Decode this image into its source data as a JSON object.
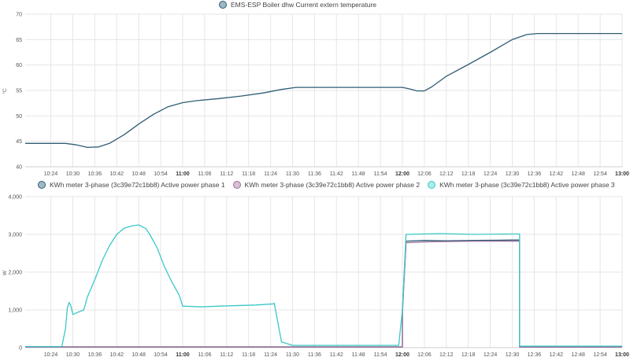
{
  "chart_data": [
    {
      "type": "line",
      "title": "",
      "ylabel": "°C",
      "ylim": [
        40,
        70
      ],
      "yticks": [
        "40",
        "45",
        "50",
        "55",
        "60",
        "65",
        "70"
      ],
      "xlim": [
        "10:17",
        "13:00"
      ],
      "x_tick_labels": [
        "10:24",
        "10:30",
        "10:36",
        "10:42",
        "10:48",
        "10:54",
        "11:00",
        "11:06",
        "11:12",
        "11:18",
        "11:24",
        "11:30",
        "11:36",
        "11:42",
        "11:48",
        "11:54",
        "12:00",
        "12:06",
        "12:12",
        "12:18",
        "12:24",
        "12:30",
        "12:36",
        "12:42",
        "12:48",
        "12:54",
        "13:00"
      ],
      "bold_ticks": [
        "11:00",
        "12:00",
        "13:00"
      ],
      "grid": true,
      "legend": "top-center",
      "series": [
        {
          "name": "EMS-ESP Boiler dhw Current extern temperature",
          "color": "#2f5d75",
          "x": [
            "10:17",
            "10:24",
            "10:28",
            "10:31",
            "10:34",
            "10:37",
            "10:40",
            "10:44",
            "10:48",
            "10:52",
            "10:56",
            "11:00",
            "11:04",
            "11:10",
            "11:16",
            "11:22",
            "11:27",
            "11:31",
            "11:40",
            "11:50",
            "12:00",
            "12:02",
            "12:04",
            "12:06",
            "12:08",
            "12:12",
            "12:18",
            "12:24",
            "12:30",
            "12:34",
            "12:37",
            "12:45",
            "13:00"
          ],
          "values": [
            44.6,
            44.6,
            44.6,
            44.3,
            43.8,
            43.9,
            44.6,
            46.3,
            48.4,
            50.3,
            51.8,
            52.6,
            53.0,
            53.4,
            53.9,
            54.5,
            55.2,
            55.6,
            55.6,
            55.6,
            55.6,
            55.3,
            54.9,
            54.9,
            55.7,
            57.8,
            60.1,
            62.5,
            65.0,
            66.0,
            66.2,
            66.2,
            66.2
          ]
        }
      ]
    },
    {
      "type": "line",
      "title": "",
      "ylabel": "W",
      "ylim": [
        0,
        4000
      ],
      "yticks": [
        "0",
        "1,000",
        "2,000",
        "3,000",
        "4,000"
      ],
      "xlim": [
        "10:17",
        "13:00"
      ],
      "x_tick_labels": [
        "10:24",
        "10:30",
        "10:36",
        "10:42",
        "10:48",
        "10:54",
        "11:00",
        "11:06",
        "11:12",
        "11:18",
        "11:24",
        "11:30",
        "11:36",
        "11:42",
        "11:48",
        "11:54",
        "12:00",
        "12:06",
        "12:12",
        "12:18",
        "12:24",
        "12:30",
        "12:36",
        "12:42",
        "12:48",
        "12:54",
        "13:00"
      ],
      "bold_ticks": [
        "11:00",
        "12:00",
        "13:00"
      ],
      "grid": true,
      "legend": "top-center",
      "series": [
        {
          "name": "KWh meter 3-phase (3c39e72c1bb8) Active power phase 1",
          "color": "#2f5d75",
          "x": [
            "10:17",
            "12:00",
            "12:00",
            "12:01",
            "12:06",
            "12:12",
            "12:20",
            "12:30",
            "12:32",
            "12:32",
            "13:00"
          ],
          "values": [
            20,
            20,
            1000,
            2820,
            2840,
            2830,
            2840,
            2850,
            2850,
            20,
            20
          ]
        },
        {
          "name": "KWh meter 3-phase (3c39e72c1bb8) Active power phase 2",
          "color": "#9b6e9b",
          "x": [
            "10:17",
            "12:00",
            "12:00",
            "12:01",
            "12:06",
            "12:12",
            "12:20",
            "12:30",
            "12:32",
            "12:32",
            "13:00"
          ],
          "values": [
            15,
            15,
            900,
            2780,
            2800,
            2810,
            2820,
            2820,
            2820,
            15,
            15
          ]
        },
        {
          "name": "KWh meter 3-phase (3c39e72c1bb8) Active power phase 3",
          "color": "#3cc7c7",
          "x": [
            "10:17",
            "10:27",
            "10:28",
            "10:28.5",
            "10:29",
            "10:29.5",
            "10:30",
            "10:30.5",
            "10:31",
            "10:33",
            "10:34",
            "10:36",
            "10:38",
            "10:40",
            "10:42",
            "10:44",
            "10:46",
            "10:48",
            "10:50",
            "10:51",
            "10:53",
            "10:55",
            "10:57",
            "10:59",
            "11:00",
            "11:05",
            "11:10",
            "11:20",
            "11:25",
            "11:25",
            "11:27",
            "11:30",
            "11:40",
            "11:50",
            "11:59",
            "11:59",
            "12:00",
            "12:01",
            "12:10",
            "12:20",
            "12:30",
            "12:32",
            "12:32",
            "13:00"
          ],
          "values": [
            30,
            30,
            500,
            1050,
            1200,
            1100,
            880,
            900,
            920,
            1000,
            1350,
            1800,
            2300,
            2700,
            3000,
            3160,
            3220,
            3250,
            3150,
            3000,
            2650,
            2150,
            1750,
            1400,
            1100,
            1080,
            1100,
            1130,
            1160,
            1180,
            150,
            60,
            60,
            60,
            60,
            60,
            1000,
            3000,
            3020,
            3000,
            3010,
            3010,
            40,
            40
          ]
        }
      ]
    }
  ]
}
